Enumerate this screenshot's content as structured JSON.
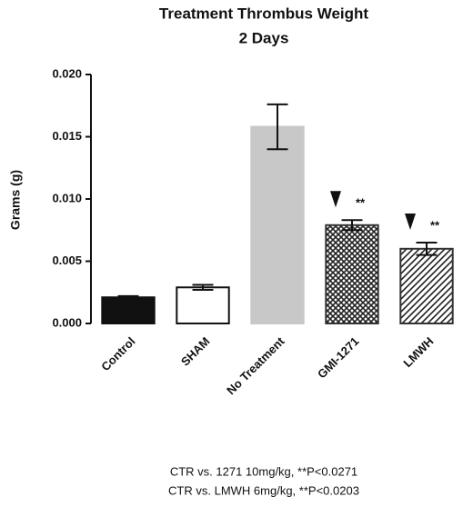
{
  "chart_data": {
    "type": "bar",
    "title": "Treatment Thrombus Weight",
    "subtitle": "2 Days",
    "y_label": "Grams  (g)",
    "categories": [
      "Control",
      "SHAM",
      "No Treatment",
      "GMI-1271",
      "LMWH"
    ],
    "values": [
      0.0021,
      0.0029,
      0.0158,
      0.0079,
      0.006
    ],
    "errors": [
      0.0001,
      0.0002,
      0.0018,
      0.0004,
      0.0005
    ],
    "colors": [
      "#111111",
      "#ffffff",
      "#c8c8c8",
      "#333333",
      "#333333"
    ],
    "patterns": [
      null,
      null,
      null,
      "crosshatch",
      "diagonal"
    ],
    "significance": [
      null,
      null,
      null,
      "**",
      "**"
    ],
    "ylim": [
      0,
      0.02
    ],
    "yticks": [
      {
        "value": 0,
        "label": "0.000"
      },
      {
        "value": 0.005,
        "label": "0.005"
      },
      {
        "value": 0.01,
        "label": "0.010"
      },
      {
        "value": 0.015,
        "label": "0.015"
      },
      {
        "value": 0.02,
        "label": "0.020"
      }
    ],
    "footnotes": [
      "CTR vs. 1271 10mg/kg, **P<0.0271",
      "CTR vs. LMWH 6mg/kg, **P<0.0203"
    ]
  }
}
